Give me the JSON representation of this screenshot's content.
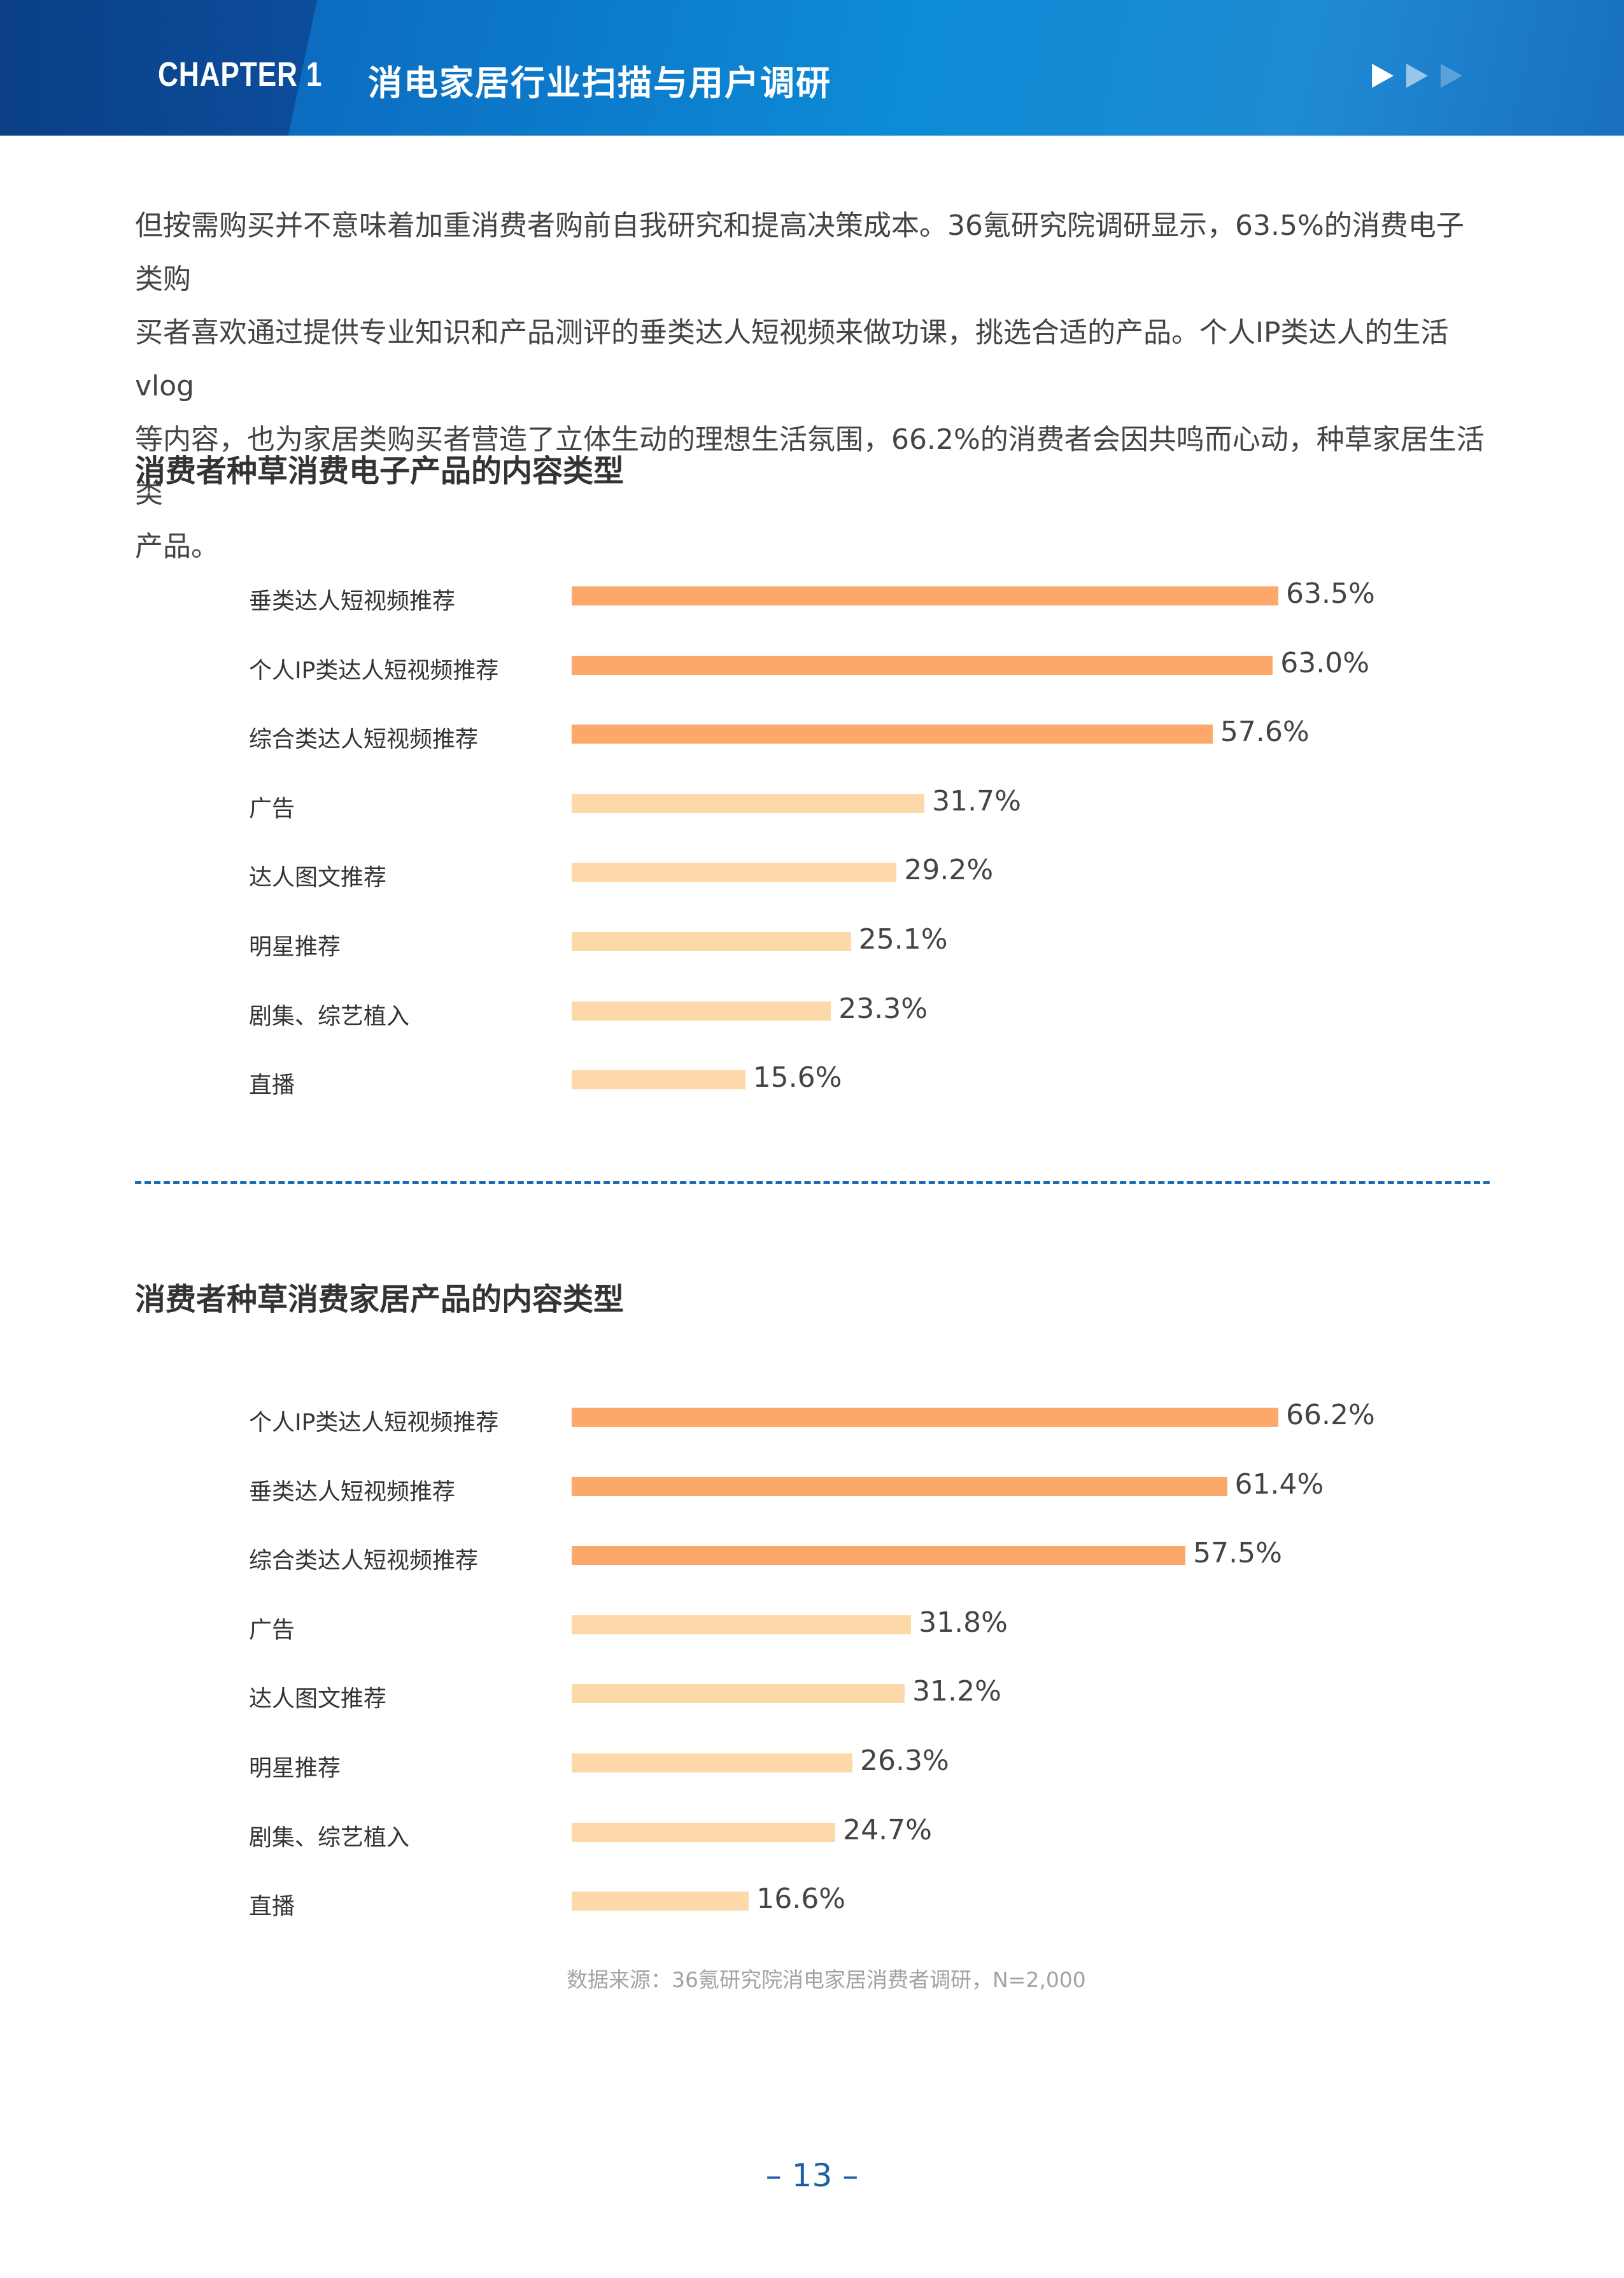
{
  "header": {
    "chapter": "CHAPTER 1",
    "title": "消电家居行业扫描与用户调研"
  },
  "intro": {
    "lines": [
      "但按需购买并不意味着加重消费者购前自我研究和提高决策成本。36氪研究院调研显示，63.5%的消费电子类购",
      "买者喜欢通过提供专业知识和产品测评的垂类达人短视频来做功课，挑选合适的产品。个人IP类达人的生活vlog",
      "等内容，也为家居类购买者营造了立体生动的理想生活氛围，66.2%的消费者会因共鸣而心动，种草家居生活类",
      "产品。"
    ]
  },
  "chart_data": [
    {
      "type": "bar",
      "orientation": "horizontal",
      "title": "消费者种草消费电子产品的内容类型",
      "categories": [
        "垂类达人短视频推荐",
        "个人IP类达人短视频推荐",
        "综合类达人短视频推荐",
        "广告",
        "达人图文推荐",
        "明星推荐",
        "剧集、综艺植入",
        "直播"
      ],
      "values": [
        63.5,
        63.0,
        57.6,
        31.7,
        29.2,
        25.1,
        23.3,
        15.6
      ],
      "value_labels": [
        "63.5%",
        "63.0%",
        "57.6%",
        "31.7%",
        "29.2%",
        "25.1%",
        "23.3%",
        "15.6%"
      ],
      "highlight_count": 3,
      "colors": {
        "highlight": "#FDA86B",
        "normal": "#FDD9A9"
      },
      "xlim": [
        0,
        63.5
      ],
      "grid": false
    },
    {
      "type": "bar",
      "orientation": "horizontal",
      "title": "消费者种草消费家居产品的内容类型",
      "categories": [
        "个人IP类达人短视频推荐",
        "垂类达人短视频推荐",
        "综合类达人短视频推荐",
        "广告",
        "达人图文推荐",
        "明星推荐",
        "剧集、综艺植入",
        "直播"
      ],
      "values": [
        66.2,
        61.4,
        57.5,
        31.8,
        31.2,
        26.3,
        24.7,
        16.6
      ],
      "value_labels": [
        "66.2%",
        "61.4%",
        "57.5%",
        "31.8%",
        "31.2%",
        "26.3%",
        "24.7%",
        "16.6%"
      ],
      "highlight_count": 3,
      "colors": {
        "highlight": "#FDA86B",
        "normal": "#FDD9A9"
      },
      "xlim": [
        0,
        66.2
      ],
      "grid": false
    }
  ],
  "source": "数据来源：36氪研究院消电家居消费者调研，N=2,000",
  "page_number": "– 13 –"
}
